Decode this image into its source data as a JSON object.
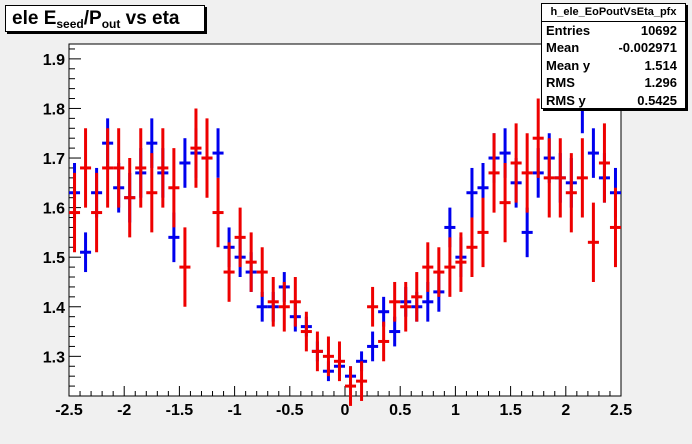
{
  "title": {
    "main": "ele E",
    "sub1": "seed",
    "mid": "/P",
    "sub2": "out",
    "tail": " vs eta"
  },
  "stats": {
    "name": "h_ele_EoPoutVsEta_pfx",
    "rows": [
      {
        "key": "Entries",
        "value": "10692"
      },
      {
        "key": "Mean",
        "value": "-0.002971"
      },
      {
        "key": "Mean y",
        "value": "1.514"
      },
      {
        "key": "RMS",
        "value": "1.296"
      },
      {
        "key": "RMS y",
        "value": "0.5425"
      }
    ]
  },
  "colors": {
    "frame_bg": "#f0f0f0",
    "plot_bg": "#ffffff",
    "blue": "#0000ee",
    "red": "#ee0000"
  },
  "chart_data": {
    "type": "scatter",
    "title": "ele E_seed/P_out vs eta",
    "xlim": [
      -2.5,
      2.5
    ],
    "ylim": [
      1.22,
      1.93
    ],
    "x_ticks": [
      "-2.5",
      "-2",
      "-1.5",
      "-1",
      "-0.5",
      "0",
      "0.5",
      "1",
      "1.5",
      "2",
      "2.5"
    ],
    "y_ticks": [
      "1.3",
      "1.4",
      "1.5",
      "1.6",
      "1.7",
      "1.8",
      "1.9"
    ],
    "grid": false,
    "series": [
      {
        "color": "blue",
        "points": [
          {
            "x": -2.45,
            "y": 1.63,
            "err": 0.06
          },
          {
            "x": -2.35,
            "y": 1.51,
            "err": 0.04
          },
          {
            "x": -2.25,
            "y": 1.63,
            "err": 0.05
          },
          {
            "x": -2.15,
            "y": 1.73,
            "err": 0.05
          },
          {
            "x": -2.05,
            "y": 1.64,
            "err": 0.05
          },
          {
            "x": -1.95,
            "y": 1.62,
            "err": 0.05
          },
          {
            "x": -1.85,
            "y": 1.67,
            "err": 0.05
          },
          {
            "x": -1.75,
            "y": 1.73,
            "err": 0.05
          },
          {
            "x": -1.65,
            "y": 1.67,
            "err": 0.05
          },
          {
            "x": -1.55,
            "y": 1.54,
            "err": 0.05
          },
          {
            "x": -1.45,
            "y": 1.69,
            "err": 0.05
          },
          {
            "x": -1.35,
            "y": 1.71,
            "err": 0.05
          },
          {
            "x": -1.25,
            "y": 1.7,
            "err": 0.05
          },
          {
            "x": -1.15,
            "y": 1.71,
            "err": 0.05
          },
          {
            "x": -1.05,
            "y": 1.52,
            "err": 0.04
          },
          {
            "x": -0.95,
            "y": 1.5,
            "err": 0.04
          },
          {
            "x": -0.85,
            "y": 1.47,
            "err": 0.04
          },
          {
            "x": -0.75,
            "y": 1.4,
            "err": 0.03
          },
          {
            "x": -0.65,
            "y": 1.4,
            "err": 0.03
          },
          {
            "x": -0.55,
            "y": 1.44,
            "err": 0.03
          },
          {
            "x": -0.45,
            "y": 1.38,
            "err": 0.03
          },
          {
            "x": -0.35,
            "y": 1.36,
            "err": 0.02
          },
          {
            "x": -0.25,
            "y": 1.31,
            "err": 0.02
          },
          {
            "x": -0.15,
            "y": 1.27,
            "err": 0.02
          },
          {
            "x": -0.05,
            "y": 1.28,
            "err": 0.02
          },
          {
            "x": 0.05,
            "y": 1.26,
            "err": 0.02
          },
          {
            "x": 0.15,
            "y": 1.29,
            "err": 0.02
          },
          {
            "x": 0.25,
            "y": 1.32,
            "err": 0.03
          },
          {
            "x": 0.35,
            "y": 1.39,
            "err": 0.03
          },
          {
            "x": 0.45,
            "y": 1.35,
            "err": 0.03
          },
          {
            "x": 0.55,
            "y": 1.41,
            "err": 0.03
          },
          {
            "x": 0.65,
            "y": 1.4,
            "err": 0.03
          },
          {
            "x": 0.75,
            "y": 1.41,
            "err": 0.04
          },
          {
            "x": 0.85,
            "y": 1.43,
            "err": 0.04
          },
          {
            "x": 0.95,
            "y": 1.56,
            "err": 0.04
          },
          {
            "x": 1.05,
            "y": 1.5,
            "err": 0.04
          },
          {
            "x": 1.15,
            "y": 1.63,
            "err": 0.05
          },
          {
            "x": 1.25,
            "y": 1.64,
            "err": 0.05
          },
          {
            "x": 1.35,
            "y": 1.7,
            "err": 0.05
          },
          {
            "x": 1.45,
            "y": 1.71,
            "err": 0.05
          },
          {
            "x": 1.55,
            "y": 1.65,
            "err": 0.05
          },
          {
            "x": 1.65,
            "y": 1.55,
            "err": 0.05
          },
          {
            "x": 1.75,
            "y": 1.67,
            "err": 0.05
          },
          {
            "x": 1.85,
            "y": 1.7,
            "err": 0.05
          },
          {
            "x": 1.95,
            "y": 1.66,
            "err": 0.05
          },
          {
            "x": 2.05,
            "y": 1.65,
            "err": 0.05
          },
          {
            "x": 2.15,
            "y": 1.8,
            "err": 0.05
          },
          {
            "x": 2.25,
            "y": 1.71,
            "err": 0.05
          },
          {
            "x": 2.35,
            "y": 1.66,
            "err": 0.05
          },
          {
            "x": 2.45,
            "y": 1.63,
            "err": 0.05
          }
        ]
      },
      {
        "color": "red",
        "points": [
          {
            "x": -2.45,
            "y": 1.59,
            "err": 0.08
          },
          {
            "x": -2.35,
            "y": 1.68,
            "err": 0.08
          },
          {
            "x": -2.25,
            "y": 1.59,
            "err": 0.08
          },
          {
            "x": -2.15,
            "y": 1.68,
            "err": 0.08
          },
          {
            "x": -2.05,
            "y": 1.68,
            "err": 0.08
          },
          {
            "x": -1.95,
            "y": 1.62,
            "err": 0.08
          },
          {
            "x": -1.85,
            "y": 1.68,
            "err": 0.08
          },
          {
            "x": -1.75,
            "y": 1.63,
            "err": 0.08
          },
          {
            "x": -1.65,
            "y": 1.68,
            "err": 0.08
          },
          {
            "x": -1.55,
            "y": 1.64,
            "err": 0.08
          },
          {
            "x": -1.45,
            "y": 1.48,
            "err": 0.08
          },
          {
            "x": -1.35,
            "y": 1.72,
            "err": 0.08
          },
          {
            "x": -1.25,
            "y": 1.7,
            "err": 0.08
          },
          {
            "x": -1.15,
            "y": 1.59,
            "err": 0.07
          },
          {
            "x": -1.05,
            "y": 1.47,
            "err": 0.06
          },
          {
            "x": -0.95,
            "y": 1.54,
            "err": 0.06
          },
          {
            "x": -0.85,
            "y": 1.49,
            "err": 0.06
          },
          {
            "x": -0.75,
            "y": 1.47,
            "err": 0.05
          },
          {
            "x": -0.65,
            "y": 1.41,
            "err": 0.05
          },
          {
            "x": -0.55,
            "y": 1.4,
            "err": 0.05
          },
          {
            "x": -0.45,
            "y": 1.41,
            "err": 0.05
          },
          {
            "x": -0.35,
            "y": 1.35,
            "err": 0.04
          },
          {
            "x": -0.25,
            "y": 1.31,
            "err": 0.04
          },
          {
            "x": -0.15,
            "y": 1.3,
            "err": 0.04
          },
          {
            "x": -0.05,
            "y": 1.29,
            "err": 0.04
          },
          {
            "x": 0.05,
            "y": 1.24,
            "err": 0.04
          },
          {
            "x": 0.15,
            "y": 1.25,
            "err": 0.04
          },
          {
            "x": 0.25,
            "y": 1.4,
            "err": 0.04
          },
          {
            "x": 0.35,
            "y": 1.33,
            "err": 0.04
          },
          {
            "x": 0.45,
            "y": 1.41,
            "err": 0.04
          },
          {
            "x": 0.55,
            "y": 1.4,
            "err": 0.05
          },
          {
            "x": 0.65,
            "y": 1.42,
            "err": 0.05
          },
          {
            "x": 0.75,
            "y": 1.48,
            "err": 0.05
          },
          {
            "x": 0.85,
            "y": 1.47,
            "err": 0.05
          },
          {
            "x": 0.95,
            "y": 1.48,
            "err": 0.06
          },
          {
            "x": 1.05,
            "y": 1.49,
            "err": 0.06
          },
          {
            "x": 1.15,
            "y": 1.52,
            "err": 0.06
          },
          {
            "x": 1.25,
            "y": 1.55,
            "err": 0.07
          },
          {
            "x": 1.35,
            "y": 1.67,
            "err": 0.08
          },
          {
            "x": 1.45,
            "y": 1.61,
            "err": 0.08
          },
          {
            "x": 1.55,
            "y": 1.69,
            "err": 0.08
          },
          {
            "x": 1.65,
            "y": 1.67,
            "err": 0.08
          },
          {
            "x": 1.75,
            "y": 1.74,
            "err": 0.08
          },
          {
            "x": 1.85,
            "y": 1.66,
            "err": 0.08
          },
          {
            "x": 1.95,
            "y": 1.66,
            "err": 0.08
          },
          {
            "x": 2.05,
            "y": 1.63,
            "err": 0.08
          },
          {
            "x": 2.15,
            "y": 1.66,
            "err": 0.08
          },
          {
            "x": 2.25,
            "y": 1.53,
            "err": 0.08
          },
          {
            "x": 2.35,
            "y": 1.69,
            "err": 0.08
          },
          {
            "x": 2.45,
            "y": 1.56,
            "err": 0.08
          }
        ]
      }
    ]
  }
}
